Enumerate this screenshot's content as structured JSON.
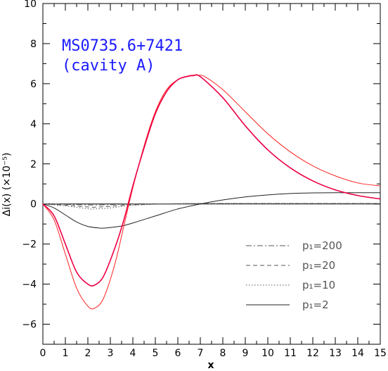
{
  "chart_data": {
    "type": "line",
    "xlabel": "x",
    "ylabel": "Δi(x) (×10⁻⁵)",
    "xlim": [
      0,
      15
    ],
    "ylim": [
      -7,
      10
    ],
    "grid": false,
    "legend_position": "bottom-right",
    "x_ticks": [
      0,
      1,
      2,
      3,
      4,
      5,
      6,
      7,
      8,
      9,
      10,
      11,
      12,
      13,
      14,
      15
    ],
    "x_tick_labels": [
      "0",
      "1",
      "2",
      "3",
      "4",
      "5",
      "6",
      "7",
      "8",
      "9",
      "10",
      "11",
      "12",
      "13",
      "14",
      "15"
    ],
    "y_ticks": [
      -6,
      -4,
      -2,
      0,
      2,
      4,
      6,
      8,
      10
    ],
    "y_tick_labels": [
      "−6",
      "−4",
      "−2",
      "0",
      "2",
      "4",
      "6",
      "8",
      "10"
    ],
    "annotation": {
      "lines": [
        "MS0735.6+7421",
        "(cavity A)"
      ],
      "color": "#1a1aff"
    },
    "series": [
      {
        "name": "p₁=200",
        "style": "dashdot",
        "color": "#555555",
        "x": [
          0,
          1,
          2,
          2.3,
          3,
          4,
          6,
          8,
          10,
          12,
          15
        ],
        "y": [
          0,
          -0.02,
          -0.05,
          -0.05,
          -0.04,
          -0.01,
          0.0,
          0.01,
          0.01,
          0.01,
          0.01
        ]
      },
      {
        "name": "p₁=20",
        "style": "dashed",
        "color": "#555555",
        "x": [
          0,
          1,
          2,
          2.3,
          3,
          4,
          6,
          8,
          10,
          12,
          15
        ],
        "y": [
          0,
          -0.06,
          -0.15,
          -0.16,
          -0.12,
          -0.04,
          0.01,
          0.02,
          0.02,
          0.02,
          0.02
        ]
      },
      {
        "name": "p₁=10",
        "style": "dotted",
        "color": "#555555",
        "x": [
          0,
          1,
          2,
          2.3,
          3,
          4,
          6,
          8,
          10,
          12,
          15
        ],
        "y": [
          0,
          -0.1,
          -0.24,
          -0.25,
          -0.2,
          -0.07,
          0.02,
          0.03,
          0.03,
          0.03,
          0.03
        ]
      },
      {
        "name": "p₁=2",
        "style": "solid",
        "color": "#222222",
        "x": [
          0,
          0.5,
          1,
          1.5,
          2,
          2.5,
          2.8,
          3.5,
          4,
          5,
          6,
          7,
          8,
          9,
          10,
          11,
          12,
          13,
          14,
          15
        ],
        "y": [
          0,
          -0.2,
          -0.55,
          -0.9,
          -1.12,
          -1.2,
          -1.2,
          -1.1,
          -0.95,
          -0.6,
          -0.25,
          0.0,
          0.2,
          0.35,
          0.45,
          0.52,
          0.55,
          0.56,
          0.56,
          0.56
        ]
      },
      {
        "name": "",
        "style": "solid",
        "color": "#ff2222",
        "x": [
          0,
          0.5,
          1,
          1.5,
          2,
          2.3,
          2.7,
          3.2,
          3.6,
          4,
          4.5,
          5,
          5.5,
          6,
          6.5,
          6.85,
          7.2,
          8,
          9,
          10,
          11,
          12,
          13,
          14,
          15
        ],
        "y": [
          0,
          -0.8,
          -2.5,
          -4.2,
          -5.1,
          -5.2,
          -4.7,
          -3.0,
          -1.1,
          0.8,
          2.9,
          4.6,
          5.7,
          6.2,
          6.4,
          6.42,
          6.35,
          5.7,
          4.6,
          3.5,
          2.6,
          1.9,
          1.4,
          1.05,
          0.9
        ]
      },
      {
        "name": "",
        "style": "solid",
        "color": "#2233ee",
        "x": [
          0,
          0.5,
          1,
          1.5,
          2,
          2.3,
          2.7,
          3.2,
          3.6,
          4,
          4.5,
          5,
          5.5,
          6,
          6.5,
          6.7,
          7,
          8,
          9,
          10,
          11,
          12,
          13,
          14,
          15
        ],
        "y": [
          0,
          -0.6,
          -2.0,
          -3.4,
          -4.0,
          -4.05,
          -3.6,
          -2.2,
          -0.8,
          0.9,
          2.8,
          4.5,
          5.6,
          6.2,
          6.38,
          6.4,
          6.35,
          5.3,
          3.9,
          2.7,
          1.8,
          1.15,
          0.7,
          0.42,
          0.25
        ]
      },
      {
        "name": "",
        "style": "solid",
        "color": "#ee0044",
        "x": [
          0,
          0.5,
          1,
          1.5,
          2,
          2.3,
          2.7,
          3.2,
          3.6,
          4,
          4.5,
          5,
          5.5,
          6,
          6.5,
          6.7,
          7,
          8,
          9,
          10,
          11,
          12,
          13,
          14,
          15
        ],
        "y": [
          0,
          -0.6,
          -2.0,
          -3.4,
          -4.0,
          -4.05,
          -3.6,
          -2.2,
          -0.8,
          0.9,
          2.8,
          4.5,
          5.6,
          6.2,
          6.38,
          6.4,
          6.35,
          5.3,
          3.9,
          2.7,
          1.8,
          1.15,
          0.7,
          0.42,
          0.25
        ]
      }
    ]
  }
}
